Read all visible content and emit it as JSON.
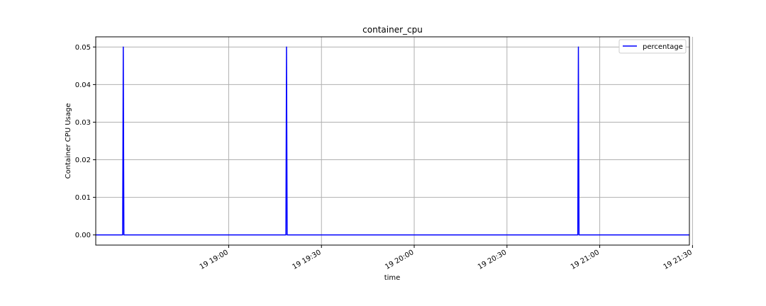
{
  "chart_data": {
    "type": "line",
    "title": "container_cpu",
    "xlabel": "time",
    "ylabel": "Container CPU Usage",
    "x_tick_labels": [
      "19 19:00",
      "19 19:30",
      "19 20:00",
      "19 20:30",
      "19 21:00",
      "19 21:30"
    ],
    "x_tick_minutes": [
      60,
      90,
      120,
      150,
      180,
      210
    ],
    "xlim_minutes": [
      17,
      209
    ],
    "y_tick_labels": [
      "0.00",
      "0.01",
      "0.02",
      "0.03",
      "0.04",
      "0.05"
    ],
    "y_ticks": [
      0.0,
      0.01,
      0.02,
      0.03,
      0.04,
      0.05
    ],
    "ylim": [
      -0.0027,
      0.0527
    ],
    "grid": true,
    "legend_position": "top-right",
    "series": [
      {
        "name": "percentage",
        "color": "#0000ff",
        "x_minutes": [
          17,
          25.7,
          25.9,
          26.1,
          78.5,
          78.7,
          78.9,
          172.9,
          173.1,
          173.3,
          209
        ],
        "values": [
          0,
          0,
          0.05,
          0,
          0,
          0.05,
          0,
          0,
          0.05,
          0,
          0
        ]
      }
    ]
  }
}
